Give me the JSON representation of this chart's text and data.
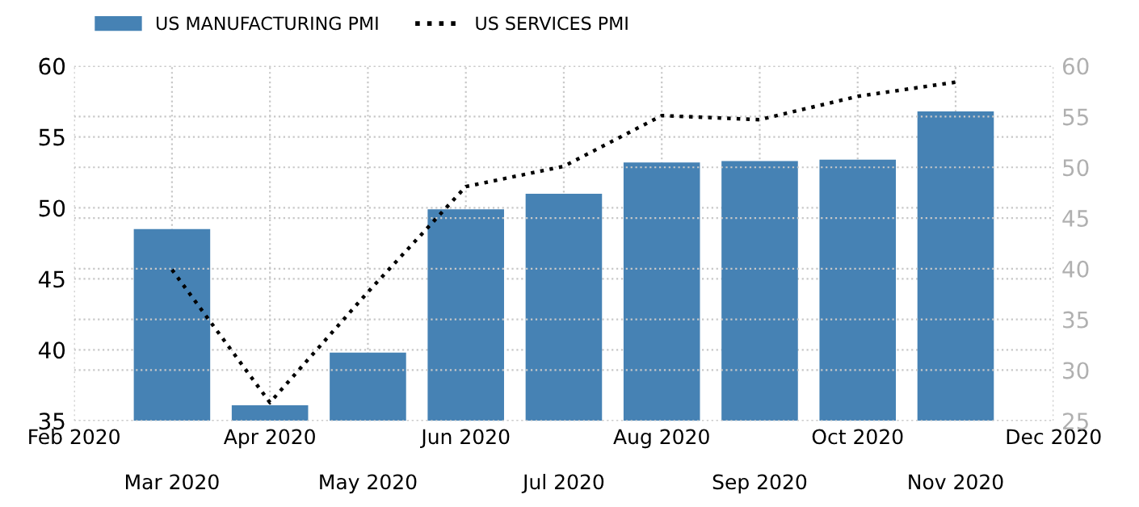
{
  "chart_data": {
    "type": "bar",
    "categories": [
      "Feb 2020",
      "Mar 2020",
      "Apr 2020",
      "May 2020",
      "Jun 2020",
      "Jul 2020",
      "Aug 2020",
      "Sep 2020",
      "Oct 2020",
      "Nov 2020",
      "Dec 2020"
    ],
    "series": [
      {
        "name": "US MANUFACTURING PMI",
        "color": "#4682b4",
        "values": [
          null,
          48.5,
          36.1,
          39.8,
          49.9,
          51.0,
          53.2,
          53.3,
          53.4,
          56.8,
          null
        ]
      },
      {
        "name": "US SERVICES PMI",
        "color": "#000000",
        "type": "line",
        "axis": "y2",
        "line_style": "dotted",
        "values": [
          null,
          39.9,
          26.8,
          37.7,
          48.1,
          50.1,
          55.1,
          54.7,
          57.0,
          58.4,
          null
        ]
      }
    ],
    "ylim": [
      35,
      60
    ],
    "yticks": [
      35,
      40,
      45,
      50,
      55,
      60
    ],
    "y2lim": [
      25,
      60
    ],
    "y2ticks": [
      25,
      30,
      35,
      40,
      45,
      50,
      55,
      60
    ],
    "grid": true,
    "legend": "top left"
  }
}
